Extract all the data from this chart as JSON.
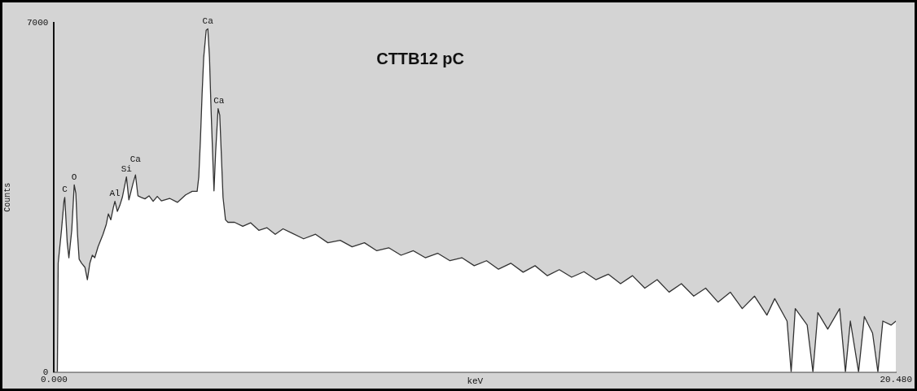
{
  "chart_data": {
    "type": "area",
    "title": "CTTB12 pC",
    "xlabel": "keV",
    "ylabel": "Counts",
    "xlim": [
      0,
      20.48
    ],
    "ylim": [
      0,
      7000
    ],
    "xticks": [
      {
        "value": 0,
        "label": "0.000"
      },
      {
        "value": 20.48,
        "label": "20.480"
      }
    ],
    "yticks": [
      0,
      7000
    ],
    "grid": false,
    "legend": false,
    "series": [
      {
        "color": "#333333",
        "x": [
          0.08,
          0.1,
          0.14,
          0.18,
          0.24,
          0.26,
          0.32,
          0.36,
          0.43,
          0.49,
          0.53,
          0.57,
          0.61,
          0.67,
          0.75,
          0.81,
          0.87,
          0.93,
          0.99,
          1.07,
          1.19,
          1.27,
          1.32,
          1.38,
          1.44,
          1.48,
          1.54,
          1.6,
          1.66,
          1.76,
          1.82,
          1.86,
          1.92,
          1.98,
          2.04,
          2.12,
          2.21,
          2.31,
          2.41,
          2.51,
          2.61,
          2.81,
          3.0,
          3.2,
          3.36,
          3.48,
          3.52,
          3.56,
          3.6,
          3.64,
          3.7,
          3.74,
          3.78,
          3.82,
          3.87,
          3.89,
          3.93,
          3.99,
          4.03,
          4.07,
          4.11,
          4.17,
          4.23,
          4.39,
          4.59,
          4.78,
          4.98,
          5.18,
          5.38,
          5.57,
          5.77,
          6.07,
          6.36,
          6.66,
          6.96,
          7.25,
          7.55,
          7.85,
          8.14,
          8.44,
          8.74,
          9.03,
          9.33,
          9.63,
          9.92,
          10.22,
          10.52,
          10.81,
          11.11,
          11.41,
          11.7,
          12.0,
          12.29,
          12.59,
          12.89,
          13.18,
          13.48,
          13.78,
          14.07,
          14.37,
          14.67,
          14.96,
          15.26,
          15.56,
          15.85,
          16.15,
          16.45,
          16.74,
          17.04,
          17.34,
          17.53,
          17.83,
          17.93,
          18.03,
          18.32,
          18.46,
          18.58,
          18.82,
          19.11,
          19.25,
          19.37,
          19.57,
          19.71,
          19.91,
          20.04,
          20.16,
          20.36,
          20.48
        ],
        "values": [
          0,
          2180,
          2510,
          2840,
          3420,
          3500,
          2590,
          2290,
          2840,
          3750,
          3580,
          2760,
          2260,
          2180,
          2100,
          1850,
          2180,
          2340,
          2290,
          2510,
          2760,
          2960,
          3170,
          3050,
          3290,
          3420,
          3220,
          3340,
          3500,
          3910,
          3450,
          3580,
          3780,
          3950,
          3530,
          3500,
          3470,
          3530,
          3420,
          3520,
          3430,
          3480,
          3400,
          3550,
          3620,
          3620,
          3910,
          4660,
          5560,
          6310,
          6850,
          6880,
          6310,
          5230,
          4080,
          3630,
          4410,
          5280,
          5150,
          4330,
          3500,
          3050,
          3000,
          3000,
          2920,
          2990,
          2840,
          2890,
          2760,
          2870,
          2790,
          2670,
          2760,
          2590,
          2640,
          2510,
          2590,
          2430,
          2490,
          2340,
          2430,
          2290,
          2380,
          2230,
          2290,
          2130,
          2230,
          2060,
          2180,
          2000,
          2130,
          1930,
          2050,
          1900,
          2010,
          1850,
          1960,
          1770,
          1930,
          1680,
          1850,
          1600,
          1770,
          1520,
          1680,
          1400,
          1600,
          1270,
          1520,
          1140,
          1470,
          1020,
          0,
          1270,
          940,
          0,
          1190,
          860,
          1270,
          0,
          1020,
          0,
          1110,
          780,
          0,
          1020,
          940,
          1020
        ]
      }
    ],
    "annotations": [
      {
        "text": "C",
        "x": 0.26,
        "y": 3500
      },
      {
        "text": "O",
        "x": 0.49,
        "y": 3750
      },
      {
        "text": "Al",
        "x": 1.48,
        "y": 3420
      },
      {
        "text": "Si",
        "x": 1.76,
        "y": 3910
      },
      {
        "text": "Ca",
        "x": 1.98,
        "y": 3950
      },
      {
        "text": "Ca",
        "x": 3.74,
        "y": 6880
      },
      {
        "text": "Ca",
        "x": 4.01,
        "y": 5280
      }
    ]
  }
}
